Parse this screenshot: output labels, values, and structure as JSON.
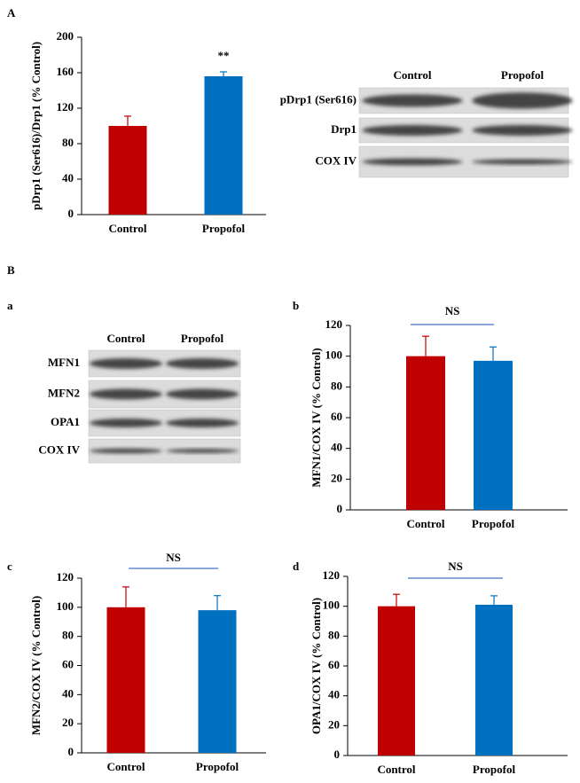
{
  "panel_labels": [
    "A",
    "B",
    "a",
    "b",
    "c",
    "d"
  ],
  "chart_data": [
    {
      "type": "bar",
      "ylabel": "pDrp1 (Ser616)/Drp1 (% Control)",
      "categories": [
        "Control",
        "Propofol"
      ],
      "values": [
        100,
        156
      ],
      "errors": [
        11,
        5
      ],
      "colors": [
        "#c00000",
        "#0070c0"
      ],
      "ylim": [
        0,
        200
      ],
      "yticks": [
        0,
        40,
        80,
        120,
        160,
        200
      ],
      "annotation": "**"
    },
    {
      "type": "bar",
      "ylabel": "MFN1/COX IV (% Control)",
      "categories": [
        "Control",
        "Propofol"
      ],
      "values": [
        100,
        97
      ],
      "errors": [
        13,
        9
      ],
      "colors": [
        "#c00000",
        "#0070c0"
      ],
      "ylim": [
        0,
        120
      ],
      "yticks": [
        0,
        20,
        40,
        60,
        80,
        100,
        120
      ],
      "annotation": "NS"
    },
    {
      "type": "bar",
      "ylabel": "MFN2/COX IV (% Control)",
      "categories": [
        "Control",
        "Propofol"
      ],
      "values": [
        100,
        98
      ],
      "errors": [
        14,
        10
      ],
      "colors": [
        "#c00000",
        "#0070c0"
      ],
      "ylim": [
        0,
        120
      ],
      "yticks": [
        0,
        20,
        40,
        60,
        80,
        100,
        120
      ],
      "annotation": "NS"
    },
    {
      "type": "bar",
      "ylabel": "OPA1/COX IV (% Control)",
      "categories": [
        "Control",
        "Propofol"
      ],
      "values": [
        100,
        101
      ],
      "errors": [
        8,
        6
      ],
      "colors": [
        "#c00000",
        "#0070c0"
      ],
      "ylim": [
        0,
        120
      ],
      "yticks": [
        0,
        20,
        40,
        60,
        80,
        100,
        120
      ],
      "annotation": "NS"
    }
  ],
  "blots": [
    {
      "lanes": [
        "Control",
        "Propofol"
      ],
      "rows": [
        "pDrp1 (Ser616)",
        "Drp1",
        "COX IV"
      ]
    },
    {
      "lanes": [
        "Control",
        "Propofol"
      ],
      "rows": [
        "MFN1",
        "MFN2",
        "OPA1",
        "COX IV"
      ]
    }
  ]
}
